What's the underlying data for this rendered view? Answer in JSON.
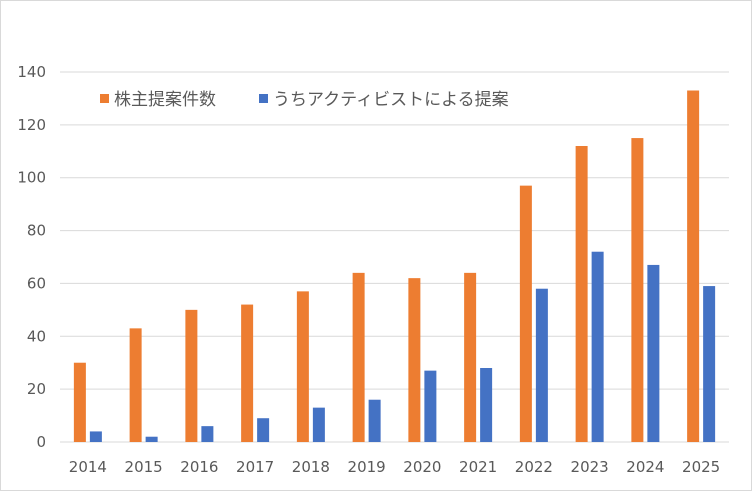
{
  "chart_data": {
    "type": "bar",
    "categories": [
      "2014",
      "2015",
      "2016",
      "2017",
      "2018",
      "2019",
      "2020",
      "2021",
      "2022",
      "2023",
      "2024",
      "2025"
    ],
    "series": [
      {
        "name": "株主提案件数",
        "color": "#ed7d31",
        "values": [
          30,
          43,
          50,
          52,
          57,
          64,
          62,
          64,
          97,
          112,
          115,
          133
        ]
      },
      {
        "name": "うちアクティビストによる提案",
        "color": "#4472c4",
        "values": [
          4,
          2,
          6,
          9,
          13,
          16,
          27,
          28,
          58,
          72,
          67,
          59
        ]
      }
    ],
    "ylim": [
      0,
      140
    ],
    "yticks": [
      0,
      20,
      40,
      60,
      80,
      100,
      120,
      140
    ],
    "grid": true,
    "gridColor": "#d9d9d9",
    "legend": "top-left"
  }
}
